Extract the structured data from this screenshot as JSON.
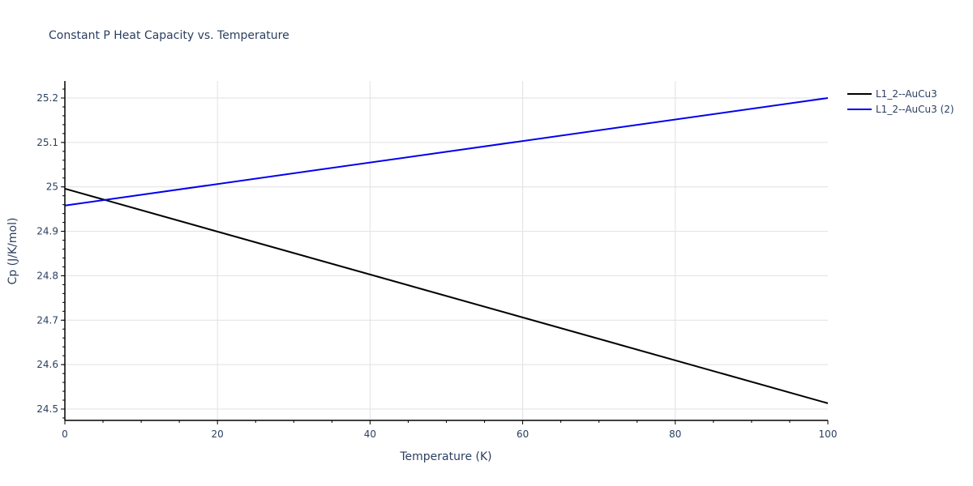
{
  "title": "Constant P Heat Capacity vs. Temperature",
  "chart_data": {
    "type": "line",
    "title": "Constant P Heat Capacity vs. Temperature",
    "xlabel": "Temperature (K)",
    "ylabel": "Cp (J/K/mol)",
    "xlim": [
      0,
      100
    ],
    "ylim": [
      24.475,
      25.238
    ],
    "x_ticks": [
      "0",
      "20",
      "40",
      "60",
      "80",
      "100"
    ],
    "y_ticks": [
      "24.5",
      "24.6",
      "24.7",
      "24.8",
      "24.9",
      "25",
      "25.1",
      "25.2"
    ],
    "grid": true,
    "legend_position": "right-top",
    "series": [
      {
        "name": "L1_2--AuCu3",
        "color": "#000000",
        "x": [
          0,
          100
        ],
        "values": [
          24.996,
          24.513
        ]
      },
      {
        "name": "L1_2--AuCu3 (2)",
        "color": "#0000ee",
        "x": [
          0,
          100
        ],
        "values": [
          24.958,
          25.2
        ]
      }
    ]
  },
  "legend": {
    "items": [
      {
        "label": "L1_2--AuCu3",
        "color": "#000000"
      },
      {
        "label": "L1_2--AuCu3 (2)",
        "color": "#0000ee"
      }
    ]
  }
}
